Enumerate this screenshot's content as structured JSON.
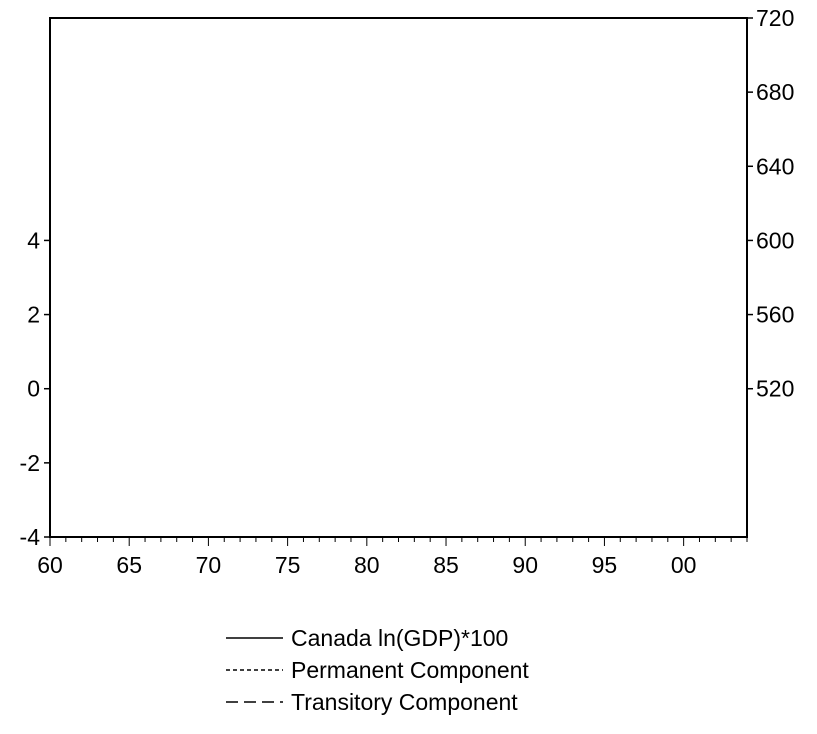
{
  "chart_data": {
    "type": "line",
    "title": "",
    "xlabel": "",
    "ylabel": "",
    "x_range": [
      1960,
      2004
    ],
    "x_ticks": [
      {
        "value": 1960,
        "label": "60"
      },
      {
        "value": 1965,
        "label": "65"
      },
      {
        "value": 1970,
        "label": "70"
      },
      {
        "value": 1975,
        "label": "75"
      },
      {
        "value": 1980,
        "label": "80"
      },
      {
        "value": 1985,
        "label": "85"
      },
      {
        "value": 1990,
        "label": "90"
      },
      {
        "value": 1995,
        "label": "95"
      },
      {
        "value": 2000,
        "label": "00"
      }
    ],
    "y_left": {
      "range": [
        -4,
        10
      ],
      "ticks": [
        -4,
        -2,
        0,
        2,
        4
      ]
    },
    "y_right": {
      "range": [
        440,
        720
      ],
      "ticks": [
        520,
        560,
        600,
        640,
        680,
        720
      ]
    },
    "grid": false,
    "legend_position": "bottom",
    "series": [
      {
        "name": "Canada ln(GDP)*100",
        "axis": "right",
        "line_style": "solid",
        "color": "#000000",
        "x": [],
        "y": []
      },
      {
        "name": "Permanent Component",
        "axis": "right",
        "line_style": "dotted",
        "color": "#000000",
        "x": [],
        "y": []
      },
      {
        "name": "Transitory Component",
        "axis": "left",
        "line_style": "dashed",
        "color": "#000000",
        "x": [],
        "y": []
      }
    ]
  }
}
